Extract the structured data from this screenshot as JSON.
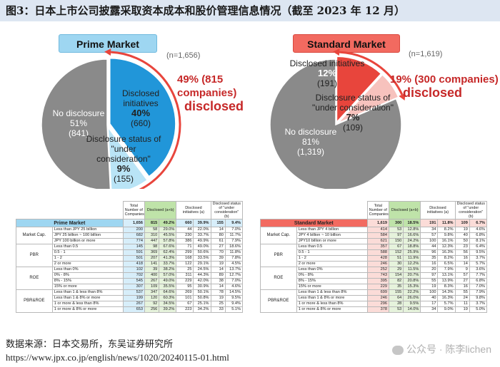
{
  "title": "图3：日本上市公司披露采取资本成本和股价管理信息情况（截至 2023 年 12 月）",
  "source": "数据来源：日本交易所，东吴证券研究所",
  "url": "https://www.jpx.co.jp/english/news/1020/20240115-01.html",
  "watermark": "公众号 · 陈李lichen",
  "colors": {
    "grey": "#8a8a8a",
    "blue": "#2196d9",
    "lightblue": "#b9e4f6",
    "red": "#e8453c",
    "lightred": "#f7c2bd",
    "highlight": "#cfe9f8"
  },
  "chart_data": [
    {
      "type": "pie",
      "title": "Prime Market",
      "n_label": "(n=1,656)",
      "total": 1656,
      "slices": [
        {
          "label": "No disclosure",
          "pct": "51%",
          "count": "(841)",
          "value": 841
        },
        {
          "label": "Disclosed initiatives",
          "pct": "40%",
          "count": "(660)",
          "value": 660
        },
        {
          "label": "Disclosure status of \"under consideration\"",
          "pct": "9%",
          "count": "(155)",
          "value": 155
        }
      ],
      "callout_line1": "49% (815 companies)",
      "callout_line2": "disclosed"
    },
    {
      "type": "pie",
      "title": "Standard Market",
      "n_label": "(n=1,619)",
      "total": 1619,
      "slices": [
        {
          "label": "No disclosure",
          "pct": "81%",
          "count": "(1,319)",
          "value": 1319
        },
        {
          "label": "Disclosed initiatives",
          "pct": "12%",
          "count": "(191)",
          "value": 191
        },
        {
          "label": "Disclosure status of \"under consideration\"",
          "pct": "7%",
          "count": "(109)",
          "value": 109
        }
      ],
      "callout_line1": "19% (300 companies)",
      "callout_line2": "disclosed"
    }
  ],
  "tables": [
    {
      "market": "Prime Market",
      "headers": [
        "Total Number of Companies",
        "Disclosed (a+b)",
        "Disclosed initiatives (a)",
        "Disclosed status of \"under consideration\" (b)"
      ],
      "total_row": [
        "1,656",
        "815",
        "49.2%",
        "660",
        "39.9%",
        "155",
        "9.4%"
      ],
      "groups": [
        {
          "name": "Market Cap.",
          "rows": [
            [
              "Less than JPY 25 billion",
              "200",
              "58",
              "29.0%",
              "44",
              "22.0%",
              "14",
              "7.0%"
            ],
            [
              "JPY 25 billion ~ 100 billion",
              "682",
              "310",
              "45.5%",
              "230",
              "33.7%",
              "80",
              "11.7%"
            ],
            [
              "JPY 100 billion or more",
              "774",
              "447",
              "57.8%",
              "386",
              "49.9%",
              "61",
              "7.9%"
            ]
          ]
        },
        {
          "name": "PBR",
          "rows": [
            [
              "Less than 0.5",
              "145",
              "98",
              "67.6%",
              "71",
              "49.0%",
              "27",
              "18.6%"
            ],
            [
              "0.5 - 1",
              "591",
              "369",
              "62.4%",
              "299",
              "50.6%",
              "70",
              "11.8%"
            ],
            [
              "1 - 2",
              "501",
              "207",
              "41.3%",
              "168",
              "33.5%",
              "39",
              "7.8%"
            ],
            [
              "2 or more",
              "418",
              "141",
              "33.7%",
              "122",
              "29.1%",
              "19",
              "4.5%"
            ]
          ]
        },
        {
          "name": "ROE",
          "rows": [
            [
              "Less than 0%",
              "102",
              "39",
              "38.2%",
              "25",
              "24.5%",
              "14",
              "13.7%"
            ],
            [
              "0% - 8%",
              "702",
              "400",
              "57.0%",
              "311",
              "44.3%",
              "89",
              "12.7%"
            ],
            [
              "8% - 15%",
              "545",
              "267",
              "49.0%",
              "229",
              "42.0%",
              "38",
              "7.0%"
            ],
            [
              "15% or more",
              "307",
              "109",
              "35.5%",
              "95",
              "30.9%",
              "14",
              "4.6%"
            ]
          ]
        },
        {
          "name": "PBR&ROE",
          "rows": [
            [
              "Less than 1 & less than 8%",
              "537",
              "347",
              "64.6%",
              "269",
              "50.1%",
              "78",
              "14.5%"
            ],
            [
              "Less than 1 & 8% or more",
              "199",
              "120",
              "60.3%",
              "101",
              "50.8%",
              "19",
              "9.5%"
            ],
            [
              "1 or more & less than 8%",
              "267",
              "92",
              "34.5%",
              "67",
              "25.1%",
              "25",
              "9.4%"
            ],
            [
              "1 or more & 8% or more",
              "653",
              "256",
              "39.2%",
              "223",
              "34.2%",
              "33",
              "5.1%"
            ]
          ]
        }
      ]
    },
    {
      "market": "Standard Market",
      "headers": [
        "Total Number of Companies",
        "Disclosed (a+b)",
        "Disclosed initiatives (a)",
        "Disclosed status of \"under consideration\" (b)"
      ],
      "total_row": [
        "1,619",
        "300",
        "18.5%",
        "191",
        "11.8%",
        "109",
        "6.7%"
      ],
      "groups": [
        {
          "name": "Market Cap.",
          "rows": [
            [
              "Less than JPY 4 billion",
              "414",
              "53",
              "12.8%",
              "34",
              "8.2%",
              "19",
              "4.6%"
            ],
            [
              "JPY 4 billion ~ 10 billion",
              "584",
              "97",
              "16.6%",
              "57",
              "9.8%",
              "40",
              "6.8%"
            ],
            [
              "JPY10 billion or more",
              "621",
              "150",
              "24.2%",
              "100",
              "16.1%",
              "50",
              "8.1%"
            ]
          ]
        },
        {
          "name": "PBR",
          "rows": [
            [
              "Less than 0.5",
              "357",
              "67",
              "18.8%",
              "44",
              "12.3%",
              "23",
              "6.4%"
            ],
            [
              "0.5 - 1",
              "588",
              "152",
              "25.9%",
              "96",
              "16.3%",
              "56",
              "9.5%"
            ],
            [
              "1 - 2",
              "428",
              "51",
              "11.9%",
              "35",
              "8.2%",
              "16",
              "3.7%"
            ],
            [
              "2 or more",
              "246",
              "30",
              "12.2%",
              "16",
              "6.5%",
              "14",
              "5.7%"
            ]
          ]
        },
        {
          "name": "ROE",
          "rows": [
            [
              "Less than 0%",
              "252",
              "29",
              "11.5%",
              "20",
              "7.9%",
              "9",
              "3.6%"
            ],
            [
              "0% - 8%",
              "743",
              "154",
              "20.7%",
              "97",
              "13.1%",
              "57",
              "7.7%"
            ],
            [
              "8% - 15%",
              "395",
              "82",
              "20.8%",
              "55",
              "13.9%",
              "27",
              "6.8%"
            ],
            [
              "15% or more",
              "229",
              "35",
              "15.3%",
              "19",
              "8.3%",
              "16",
              "7.0%"
            ]
          ]
        },
        {
          "name": "PBR&ROE",
          "rows": [
            [
              "Less than 1 & less than 8%",
              "699",
              "155",
              "22.2%",
              "100",
              "14.3%",
              "55",
              "7.9%"
            ],
            [
              "Less than 1 & 8% or more",
              "246",
              "64",
              "26.0%",
              "40",
              "16.3%",
              "24",
              "9.8%"
            ],
            [
              "1 or more & less than 8%",
              "296",
              "28",
              "9.5%",
              "17",
              "5.7%",
              "11",
              "3.7%"
            ],
            [
              "1 or more & 8% or more",
              "378",
              "53",
              "14.0%",
              "34",
              "9.0%",
              "19",
              "5.0%"
            ]
          ]
        }
      ]
    }
  ]
}
